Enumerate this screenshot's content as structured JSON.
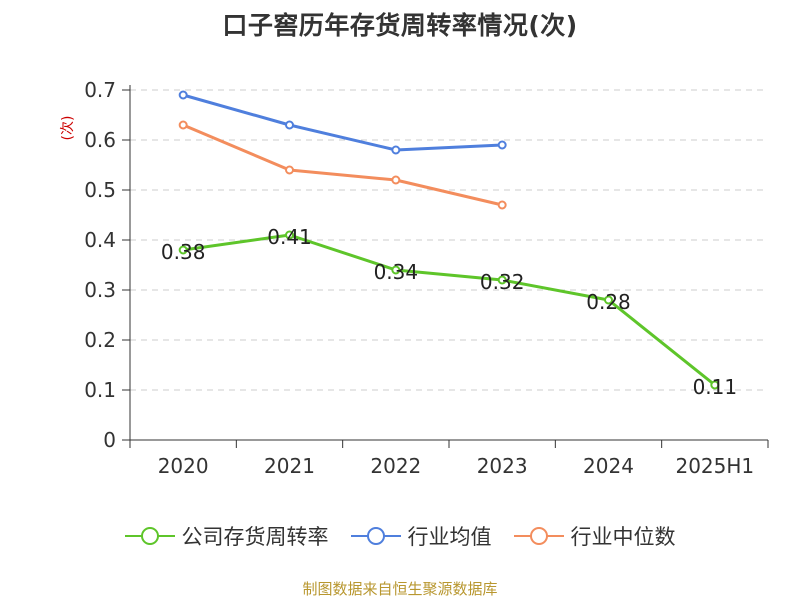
{
  "chart_data": {
    "type": "line",
    "title": "口子窖历年存货周转率情况(次)",
    "ylabel": "(次)",
    "categories": [
      "2020",
      "2021",
      "2022",
      "2023",
      "2024",
      "2025H1"
    ],
    "ylim": [
      0,
      0.7
    ],
    "yticks": [
      "0",
      "0.1",
      "0.2",
      "0.3",
      "0.4",
      "0.5",
      "0.6",
      "0.7"
    ],
    "grid": true,
    "legend_position": "bottom",
    "series": [
      {
        "name": "公司存货周转率",
        "color": "#5ec52a",
        "values": [
          0.38,
          0.41,
          0.34,
          0.32,
          0.28,
          0.11
        ],
        "labels": [
          "0.38",
          "0.41",
          "0.34",
          "0.32",
          "0.28",
          "0.11"
        ]
      },
      {
        "name": "行业均值",
        "color": "#4f7fdd",
        "values": [
          0.69,
          0.63,
          0.58,
          0.59,
          null,
          null
        ]
      },
      {
        "name": "行业中位数",
        "color": "#f38d5d",
        "values": [
          0.63,
          0.54,
          0.52,
          0.47,
          null,
          null
        ]
      }
    ]
  },
  "footer": {
    "source": "制图数据来自恒生聚源数据库"
  }
}
